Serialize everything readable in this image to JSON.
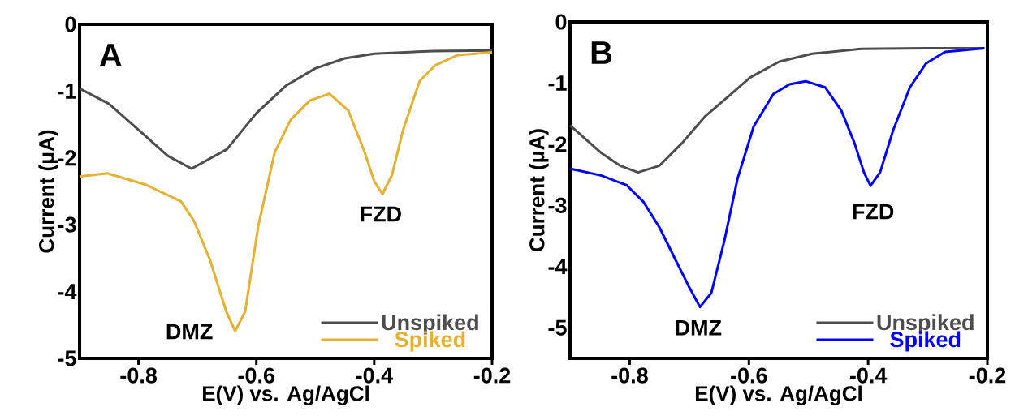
{
  "chart_data": [
    {
      "type": "line",
      "xlabel": "E(V) vs. Ag/AgCl",
      "ylabel": "Current (μA)",
      "xlim": [
        -0.9,
        -0.2
      ],
      "ylim": [
        -5,
        0
      ],
      "xticks": [
        -0.8,
        -0.6,
        -0.4,
        -0.2
      ],
      "yticks": [
        -5,
        -4,
        -3,
        -2,
        -1,
        0
      ],
      "legend": "bottom right",
      "marker": "none",
      "line_style": "solid",
      "annotations": [
        "A",
        "DMZ",
        "FZD"
      ],
      "series": [
        {
          "name": "Unspiked",
          "color": "#4d4d4d",
          "x": [
            -0.9,
            -0.85,
            -0.8,
            -0.75,
            -0.71,
            -0.65,
            -0.6,
            -0.55,
            -0.5,
            -0.45,
            -0.4,
            -0.3,
            -0.2
          ],
          "values": [
            -0.96,
            -1.19,
            -1.58,
            -1.97,
            -2.16,
            -1.87,
            -1.33,
            -0.92,
            -0.66,
            -0.51,
            -0.44,
            -0.4,
            -0.39
          ]
        },
        {
          "name": "Spiked",
          "color": "#e6b030",
          "x": [
            -0.9,
            -0.853,
            -0.788,
            -0.728,
            -0.706,
            -0.679,
            -0.651,
            -0.636,
            -0.619,
            -0.597,
            -0.569,
            -0.542,
            -0.509,
            -0.476,
            -0.444,
            -0.416,
            -0.4,
            -0.386,
            -0.37,
            -0.351,
            -0.323,
            -0.296,
            -0.258,
            -0.2
          ],
          "values": [
            -2.28,
            -2.23,
            -2.4,
            -2.65,
            -2.94,
            -3.52,
            -4.3,
            -4.59,
            -4.3,
            -3.03,
            -1.92,
            -1.43,
            -1.14,
            -1.04,
            -1.29,
            -1.92,
            -2.35,
            -2.54,
            -2.26,
            -1.58,
            -0.85,
            -0.61,
            -0.46,
            -0.42
          ]
        }
      ]
    },
    {
      "type": "line",
      "xlabel": "E(V) vs. Ag/AgCl",
      "ylabel": "Current (μA)",
      "xlim": [
        -0.9,
        -0.2
      ],
      "ylim": [
        -5.5,
        0
      ],
      "xticks": [
        -0.8,
        -0.6,
        -0.4,
        -0.2
      ],
      "yticks": [
        -5,
        -4,
        -3,
        -2,
        -1,
        0
      ],
      "legend": "bottom right",
      "marker": "none",
      "line_style": "solid",
      "annotations": [
        "B",
        "DMZ",
        "FZD"
      ],
      "series": [
        {
          "name": "Unspiked",
          "color": "#4d4d4d",
          "x": [
            -0.9,
            -0.848,
            -0.816,
            -0.786,
            -0.75,
            -0.712,
            -0.674,
            -0.63,
            -0.598,
            -0.549,
            -0.494,
            -0.412,
            -0.303,
            -0.205
          ],
          "values": [
            -1.69,
            -2.14,
            -2.35,
            -2.46,
            -2.35,
            -1.98,
            -1.55,
            -1.18,
            -0.91,
            -0.65,
            -0.52,
            -0.44,
            -0.43,
            -0.43
          ]
        },
        {
          "name": "Spiked",
          "color": "#0000ff",
          "x": [
            -0.9,
            -0.848,
            -0.805,
            -0.777,
            -0.75,
            -0.723,
            -0.701,
            -0.682,
            -0.663,
            -0.641,
            -0.619,
            -0.592,
            -0.559,
            -0.532,
            -0.505,
            -0.472,
            -0.445,
            -0.423,
            -0.407,
            -0.396,
            -0.38,
            -0.358,
            -0.33,
            -0.303,
            -0.271,
            -0.205
          ],
          "values": [
            -2.4,
            -2.51,
            -2.67,
            -2.94,
            -3.36,
            -3.89,
            -4.32,
            -4.66,
            -4.43,
            -3.57,
            -2.56,
            -1.71,
            -1.18,
            -1.02,
            -0.97,
            -1.07,
            -1.45,
            -1.98,
            -2.46,
            -2.68,
            -2.46,
            -1.77,
            -1.07,
            -0.68,
            -0.49,
            -0.43
          ]
        }
      ]
    }
  ]
}
